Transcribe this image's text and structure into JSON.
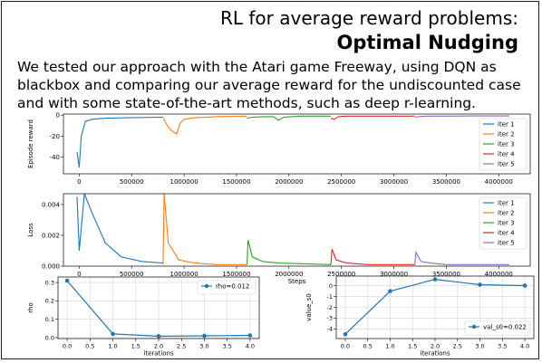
{
  "slide": {
    "title": "RL for average reward problems:",
    "subtitle": "Optimal Nudging",
    "description": "We tested our approach with the Atari game Freeway, using DQN as blackbox and comparing our average reward for the undiscounted case and with some state-of-the-art methods, such as deep r-learning."
  },
  "chart_data": [
    {
      "type": "line",
      "ylabel": "Episode reward",
      "xlabel": "",
      "xlim": [
        -150000,
        4300000
      ],
      "ylim": [
        -56,
        1
      ],
      "xticks": [
        "0",
        "500000",
        "1000000",
        "1500000",
        "2000000",
        "2500000",
        "3000000",
        "3500000",
        "4000000"
      ],
      "yticks": [
        "0",
        "-20",
        "-40"
      ],
      "legend_loc": "lower-right",
      "series": [
        {
          "name": "iter 1",
          "color": "#1f77b4",
          "x": [
            -20000,
            0,
            20000,
            60000,
            120000,
            250000,
            450000,
            800000
          ],
          "y": [
            -35,
            -50,
            -20,
            -6,
            -4,
            -3,
            -2.5,
            -2
          ]
        },
        {
          "name": "iter 2",
          "color": "#ff7f0e",
          "x": [
            800000,
            840000,
            880000,
            930000,
            960000,
            1000000,
            1100000,
            1300000,
            1600000
          ],
          "y": [
            -3,
            -10,
            -15,
            -18,
            -8,
            -4,
            -2.5,
            -1.5,
            -1
          ]
        },
        {
          "name": "iter 3",
          "color": "#2ca02c",
          "x": [
            1600000,
            1650000,
            1750000,
            1850000,
            1900000,
            1950000,
            2100000,
            2400000
          ],
          "y": [
            -3,
            -2,
            -1.5,
            -1.5,
            -5,
            -2,
            -1,
            -1
          ]
        },
        {
          "name": "iter 4",
          "color": "#d62728",
          "x": [
            2400000,
            2430000,
            2470000,
            2550000,
            2750000,
            3000000,
            3200000
          ],
          "y": [
            -3,
            -4,
            -1.5,
            -1,
            -1,
            -1,
            -1
          ]
        },
        {
          "name": "iter 5",
          "color": "#9467bd",
          "x": [
            3200000,
            3230000,
            3300000,
            3500000,
            3800000,
            4100000
          ],
          "y": [
            -2,
            -1.5,
            -1,
            -1,
            -0.8,
            -0.8
          ]
        }
      ]
    },
    {
      "type": "line",
      "ylabel": "Loss",
      "xlabel": "Steps",
      "xlim": [
        -150000,
        4300000
      ],
      "ylim": [
        0,
        0.0047
      ],
      "xticks": [
        "0",
        "500000",
        "1000000",
        "1500000",
        "2000000",
        "2500000",
        "3000000",
        "3500000",
        "4000000"
      ],
      "yticks": [
        "0.000",
        "0.002",
        "0.004"
      ],
      "legend_loc": "upper-right",
      "series": [
        {
          "name": "iter 1",
          "color": "#1f77b4",
          "x": [
            -20000,
            0,
            50000,
            120000,
            250000,
            400000,
            600000,
            800000
          ],
          "y": [
            0.0045,
            0.001,
            0.0047,
            0.0035,
            0.0015,
            0.0006,
            0.0003,
            0.0002
          ]
        },
        {
          "name": "iter 2",
          "color": "#ff7f0e",
          "x": [
            800000,
            810000,
            850000,
            950000,
            1100000,
            1300000,
            1600000
          ],
          "y": [
            0.0001,
            0.0047,
            0.0015,
            0.0004,
            0.0002,
            0.0001,
            0.0001
          ]
        },
        {
          "name": "iter 3",
          "color": "#2ca02c",
          "x": [
            1600000,
            1610000,
            1650000,
            1750000,
            1900000,
            2400000
          ],
          "y": [
            0.0001,
            0.0017,
            0.0006,
            0.0003,
            0.0002,
            0.0001
          ]
        },
        {
          "name": "iter 4",
          "color": "#d62728",
          "x": [
            2400000,
            2410000,
            2450000,
            2550000,
            2750000,
            3200000
          ],
          "y": [
            0.0001,
            0.0011,
            0.0004,
            0.0002,
            0.0001,
            0.0001
          ]
        },
        {
          "name": "iter 5",
          "color": "#9467bd",
          "x": [
            3200000,
            3210000,
            3260000,
            3350000,
            3500000,
            4100000
          ],
          "y": [
            0.0001,
            0.0009,
            0.0003,
            0.0002,
            0.0001,
            0.0001
          ]
        }
      ]
    },
    {
      "type": "line",
      "ylabel": "rho",
      "xlabel": "iterations",
      "xlim": [
        -0.2,
        4.2
      ],
      "ylim": [
        -0.005,
        0.33
      ],
      "xticks": [
        "0.0",
        "0.5",
        "1.0",
        "1.5",
        "2.0",
        "2.5",
        "3.0",
        "3.5",
        "4.0"
      ],
      "yticks": [
        "0.0",
        "0.1",
        "0.2",
        "0.3"
      ],
      "legend_loc": "upper-right",
      "series": [
        {
          "name": "rho=0.012",
          "color": "#1f77b4",
          "x": [
            0,
            1,
            2,
            3,
            4
          ],
          "y": [
            0.31,
            0.02,
            0.008,
            0.01,
            0.012
          ]
        }
      ]
    },
    {
      "type": "line",
      "ylabel": "value_s0",
      "xlabel": "iterations",
      "xlim": [
        -0.2,
        4.2
      ],
      "ylim": [
        -4.9,
        0.9
      ],
      "xticks": [
        "0.0",
        "0.5",
        "1.0",
        "1.5",
        "2.0",
        "2.5",
        "3.0",
        "3.5",
        "4.0"
      ],
      "yticks": [
        "0",
        "-1",
        "-2",
        "-3",
        "-4"
      ],
      "legend_loc": "lower-right",
      "series": [
        {
          "name": "val_s0=0.022",
          "color": "#1f77b4",
          "x": [
            0,
            1,
            2,
            3,
            4
          ],
          "y": [
            -4.5,
            -0.5,
            0.6,
            0.1,
            0.02
          ]
        }
      ]
    }
  ]
}
